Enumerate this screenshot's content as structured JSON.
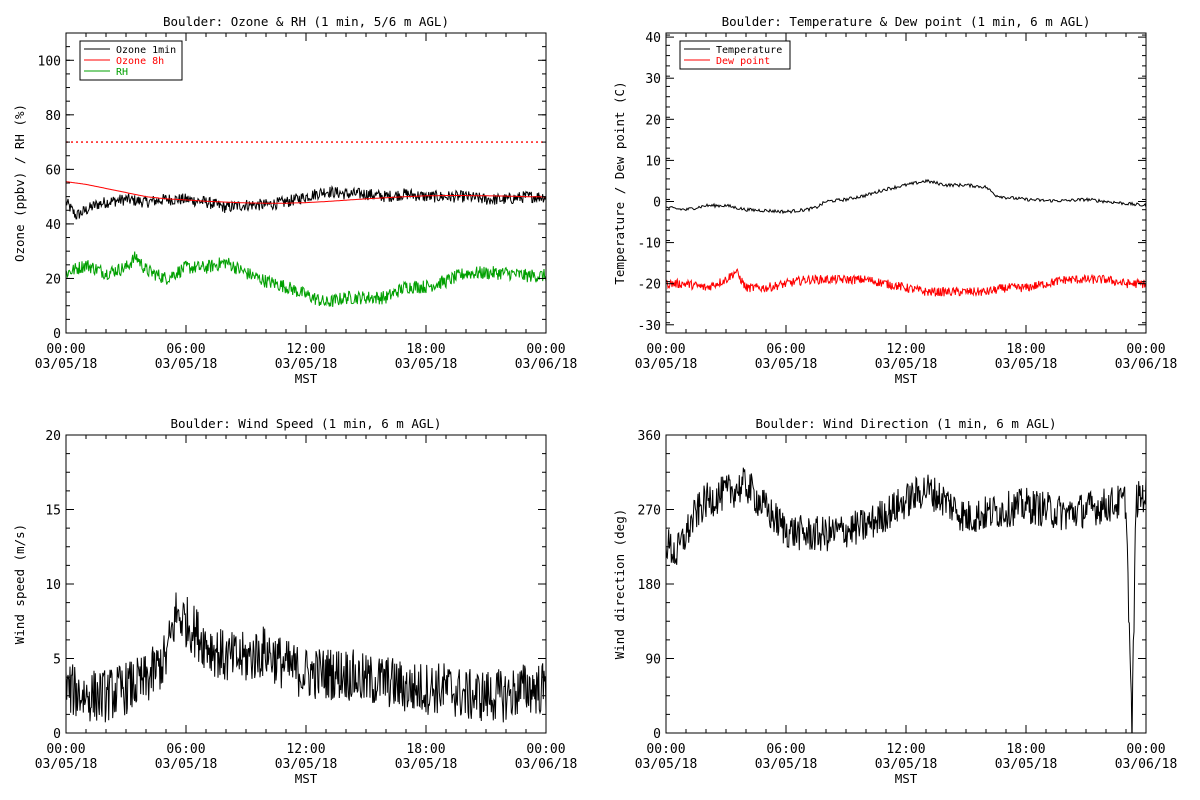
{
  "chart_data": [
    {
      "type": "line",
      "title": "Boulder: Ozone & RH (1 min, 5/6 m AGL)",
      "xlabel": "MST",
      "ylabel": "Ozone (ppbv) / RH (%)",
      "ylim": [
        0,
        110
      ],
      "yticks": [
        0,
        20,
        40,
        60,
        80,
        100
      ],
      "x_tick_labels": [
        [
          "00:00",
          "03/05/18"
        ],
        [
          "06:00",
          "03/05/18"
        ],
        [
          "12:00",
          "03/05/18"
        ],
        [
          "18:00",
          "03/05/18"
        ],
        [
          "00:00",
          "03/06/18"
        ]
      ],
      "x_range_hours": [
        0,
        24
      ],
      "legend": "top-left",
      "series": [
        {
          "name": "Ozone 1min",
          "color": "#000000",
          "style": "noisy",
          "x": [
            0,
            0.5,
            1,
            1.5,
            2,
            3,
            4,
            5,
            6,
            7,
            8,
            9,
            10,
            11,
            12,
            13,
            14,
            15,
            16,
            17,
            18,
            19,
            20,
            21,
            22,
            23,
            24
          ],
          "y": [
            48,
            43,
            45,
            47,
            48,
            49,
            48,
            49,
            49,
            48,
            46,
            47,
            47,
            48,
            50,
            52,
            51,
            51,
            50,
            51,
            50,
            50,
            50,
            49,
            49,
            50,
            50
          ]
        },
        {
          "name": "Ozone 8h",
          "color": "#ff0000",
          "style": "smooth",
          "x": [
            0,
            1,
            2,
            3,
            4,
            5,
            6,
            7,
            8,
            9,
            10,
            11,
            12,
            13,
            14,
            15,
            16,
            17,
            18,
            19,
            20,
            21,
            22,
            23,
            24
          ],
          "y": [
            55.5,
            54.5,
            53,
            51.5,
            50,
            49.2,
            48.8,
            48.3,
            48,
            47.7,
            47.6,
            47.6,
            47.8,
            48.2,
            48.7,
            49.2,
            49.6,
            50,
            50.3,
            50.4,
            50.4,
            50.3,
            50.2,
            50,
            49.9
          ]
        },
        {
          "name": "RH",
          "color": "#00a000",
          "style": "noisy",
          "x": [
            0,
            1,
            2,
            3,
            3.5,
            4,
            5,
            6,
            7,
            8,
            9,
            10,
            11,
            12,
            13,
            14,
            15,
            16,
            17,
            18,
            19,
            20,
            21,
            22,
            23,
            24
          ],
          "y": [
            22,
            25,
            22,
            24,
            28,
            23,
            20,
            24,
            24,
            26,
            22,
            19,
            17,
            14,
            11,
            13,
            13,
            13,
            17,
            17,
            19,
            22,
            22,
            22,
            21,
            21
          ]
        },
        {
          "name": "",
          "color": "#ff0000",
          "style": "dotted",
          "x": [
            0,
            24
          ],
          "y": [
            70,
            70
          ]
        }
      ]
    },
    {
      "type": "line",
      "title": "Boulder: Temperature & Dew point (1 min, 6 m AGL)",
      "xlabel": "MST",
      "ylabel": "Temperature / Dew point (C)",
      "ylim": [
        -32,
        41
      ],
      "yticks": [
        -30,
        -20,
        -10,
        0,
        10,
        20,
        30,
        40
      ],
      "x_tick_labels": [
        [
          "00:00",
          "03/05/18"
        ],
        [
          "06:00",
          "03/05/18"
        ],
        [
          "12:00",
          "03/05/18"
        ],
        [
          "18:00",
          "03/05/18"
        ],
        [
          "00:00",
          "03/06/18"
        ]
      ],
      "x_range_hours": [
        0,
        24
      ],
      "legend": "top-left",
      "series": [
        {
          "name": "Temperature",
          "color": "#000000",
          "style": "smooth",
          "x": [
            0,
            1,
            2,
            3,
            4,
            5,
            6,
            7,
            7.5,
            8,
            9,
            10,
            11,
            12,
            13,
            14,
            15,
            16,
            16.5,
            17,
            18,
            19,
            20,
            21,
            22,
            23,
            24
          ],
          "y": [
            -1.5,
            -2,
            -1,
            -1,
            -2,
            -2.2,
            -2.5,
            -2,
            -1.5,
            0,
            0.5,
            1.5,
            3,
            4,
            5,
            4,
            4,
            3.5,
            1.5,
            1,
            0.5,
            0.2,
            0.2,
            0.5,
            0,
            -0.5,
            -1
          ]
        },
        {
          "name": "Dew point",
          "color": "#ff0000",
          "style": "noisy",
          "x": [
            0,
            1,
            2,
            3,
            3.5,
            4,
            5,
            6,
            7,
            8,
            9,
            10,
            11,
            12,
            13,
            14,
            15,
            16,
            17,
            18,
            19,
            20,
            21,
            22,
            23,
            24
          ],
          "y": [
            -20,
            -20,
            -21,
            -19,
            -17,
            -21,
            -21,
            -20,
            -19,
            -19,
            -19,
            -19,
            -20,
            -21,
            -22,
            -22,
            -22,
            -22,
            -21,
            -21,
            -20,
            -19,
            -19,
            -19,
            -20,
            -20
          ]
        }
      ]
    },
    {
      "type": "line",
      "title": "Boulder: Wind Speed (1 min, 6 m AGL)",
      "xlabel": "MST",
      "ylabel": "Wind speed (m/s)",
      "ylim": [
        0,
        20
      ],
      "yticks": [
        0,
        5,
        10,
        15,
        20
      ],
      "x_tick_labels": [
        [
          "00:00",
          "03/05/18"
        ],
        [
          "06:00",
          "03/05/18"
        ],
        [
          "12:00",
          "03/05/18"
        ],
        [
          "18:00",
          "03/05/18"
        ],
        [
          "00:00",
          "03/06/18"
        ]
      ],
      "x_range_hours": [
        0,
        24
      ],
      "legend": "none",
      "series": [
        {
          "name": "",
          "color": "#000000",
          "style": "noisy",
          "x": [
            0,
            1,
            2,
            3,
            4,
            5,
            5.5,
            6,
            7,
            8,
            9,
            10,
            11,
            12,
            13,
            14,
            15,
            16,
            17,
            18,
            19,
            20,
            21,
            22,
            23,
            24
          ],
          "y": [
            3,
            2.5,
            2.5,
            3,
            3.5,
            5,
            8,
            7.5,
            6,
            5,
            5,
            5.5,
            4.5,
            4,
            4,
            4,
            3.5,
            3.5,
            3,
            3,
            3,
            2.5,
            2.5,
            2.5,
            3,
            3
          ]
        }
      ]
    },
    {
      "type": "line",
      "title": "Boulder: Wind Direction (1 min, 6 m AGL)",
      "xlabel": "MST",
      "ylabel": "Wind direction (deg)",
      "ylim": [
        0,
        360
      ],
      "yticks": [
        0,
        90,
        180,
        270,
        360
      ],
      "x_tick_labels": [
        [
          "00:00",
          "03/05/18"
        ],
        [
          "06:00",
          "03/05/18"
        ],
        [
          "12:00",
          "03/05/18"
        ],
        [
          "18:00",
          "03/05/18"
        ],
        [
          "00:00",
          "03/06/18"
        ]
      ],
      "x_range_hours": [
        0,
        24
      ],
      "legend": "none",
      "series": [
        {
          "name": "",
          "color": "#000000",
          "style": "noisy",
          "x": [
            0,
            0.5,
            1,
            1.5,
            2,
            3,
            4,
            5,
            6,
            7,
            8,
            9,
            10,
            11,
            12,
            13,
            14,
            15,
            16,
            17,
            18,
            19,
            20,
            21,
            22,
            23,
            23.3,
            23.5,
            24
          ],
          "y": [
            230,
            215,
            240,
            265,
            280,
            290,
            300,
            270,
            245,
            240,
            240,
            245,
            250,
            265,
            280,
            295,
            280,
            260,
            265,
            270,
            275,
            270,
            265,
            270,
            275,
            280,
            0,
            280,
            290
          ]
        }
      ]
    }
  ]
}
